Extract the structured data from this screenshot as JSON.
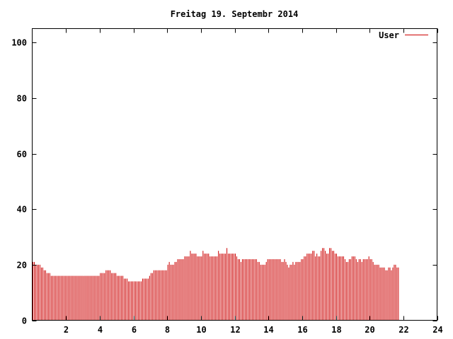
{
  "chart_data": {
    "type": "bar",
    "title": "Freitag 19. Septembr 2014",
    "xlabel": "",
    "ylabel": "",
    "xlim": [
      0,
      24
    ],
    "ylim": [
      0,
      105
    ],
    "x_ticks": [
      2,
      4,
      6,
      8,
      10,
      12,
      14,
      16,
      18,
      20,
      22,
      24
    ],
    "x_tick_labels": [
      "2",
      "4",
      "6",
      "8",
      "10",
      "12",
      "14",
      "16",
      "18",
      "20",
      "22",
      "24"
    ],
    "y_ticks": [
      0,
      20,
      40,
      60,
      80,
      100
    ],
    "y_tick_labels": [
      "0",
      "20",
      "40",
      "60",
      "80",
      "100"
    ],
    "grid": false,
    "legend_position": "top-right",
    "color": "#cc0000",
    "series": [
      {
        "name": "User",
        "interval_minutes": 5,
        "values": [
          21,
          21,
          20,
          20,
          20,
          20,
          19,
          19,
          18,
          18,
          17,
          17,
          17,
          16,
          16,
          16,
          16,
          16,
          16,
          16,
          16,
          16,
          16,
          16,
          16,
          16,
          16,
          16,
          16,
          16,
          16,
          16,
          16,
          16,
          16,
          16,
          16,
          16,
          16,
          16,
          16,
          16,
          16,
          16,
          16,
          16,
          16,
          16,
          17,
          17,
          17,
          17,
          18,
          18,
          18,
          18,
          17,
          17,
          17,
          17,
          16,
          16,
          16,
          16,
          16,
          15,
          15,
          15,
          14,
          14,
          14,
          14,
          14,
          14,
          14,
          14,
          14,
          14,
          15,
          15,
          15,
          15,
          15,
          16,
          17,
          17,
          18,
          18,
          18,
          18,
          18,
          18,
          18,
          18,
          18,
          18,
          20,
          21,
          20,
          20,
          20,
          21,
          21,
          22,
          22,
          22,
          22,
          22,
          23,
          23,
          23,
          23,
          25,
          24,
          24,
          24,
          24,
          23,
          23,
          23,
          23,
          25,
          24,
          24,
          24,
          24,
          23,
          23,
          23,
          23,
          23,
          23,
          25,
          24,
          24,
          24,
          24,
          24,
          26,
          24,
          24,
          24,
          24,
          24,
          24,
          23,
          22,
          22,
          21,
          22,
          22,
          22,
          22,
          22,
          22,
          22,
          22,
          22,
          22,
          22,
          21,
          21,
          20,
          20,
          20,
          20,
          21,
          22,
          22,
          22,
          22,
          22,
          22,
          22,
          22,
          22,
          22,
          21,
          21,
          22,
          21,
          20,
          19,
          20,
          20,
          21,
          20,
          21,
          21,
          21,
          21,
          22,
          22,
          23,
          23,
          24,
          24,
          24,
          24,
          25,
          25,
          23,
          24,
          23,
          23,
          25,
          26,
          26,
          25,
          24,
          24,
          26,
          26,
          25,
          25,
          24,
          24,
          23,
          23,
          23,
          23,
          23,
          22,
          21,
          21,
          22,
          22,
          23,
          23,
          23,
          22,
          21,
          22,
          22,
          21,
          22,
          22,
          22,
          22,
          23,
          22,
          22,
          21,
          20,
          20,
          20,
          20,
          19,
          19,
          19,
          19,
          18,
          18,
          19,
          19,
          18,
          19,
          20,
          20,
          19,
          19
        ]
      }
    ]
  }
}
